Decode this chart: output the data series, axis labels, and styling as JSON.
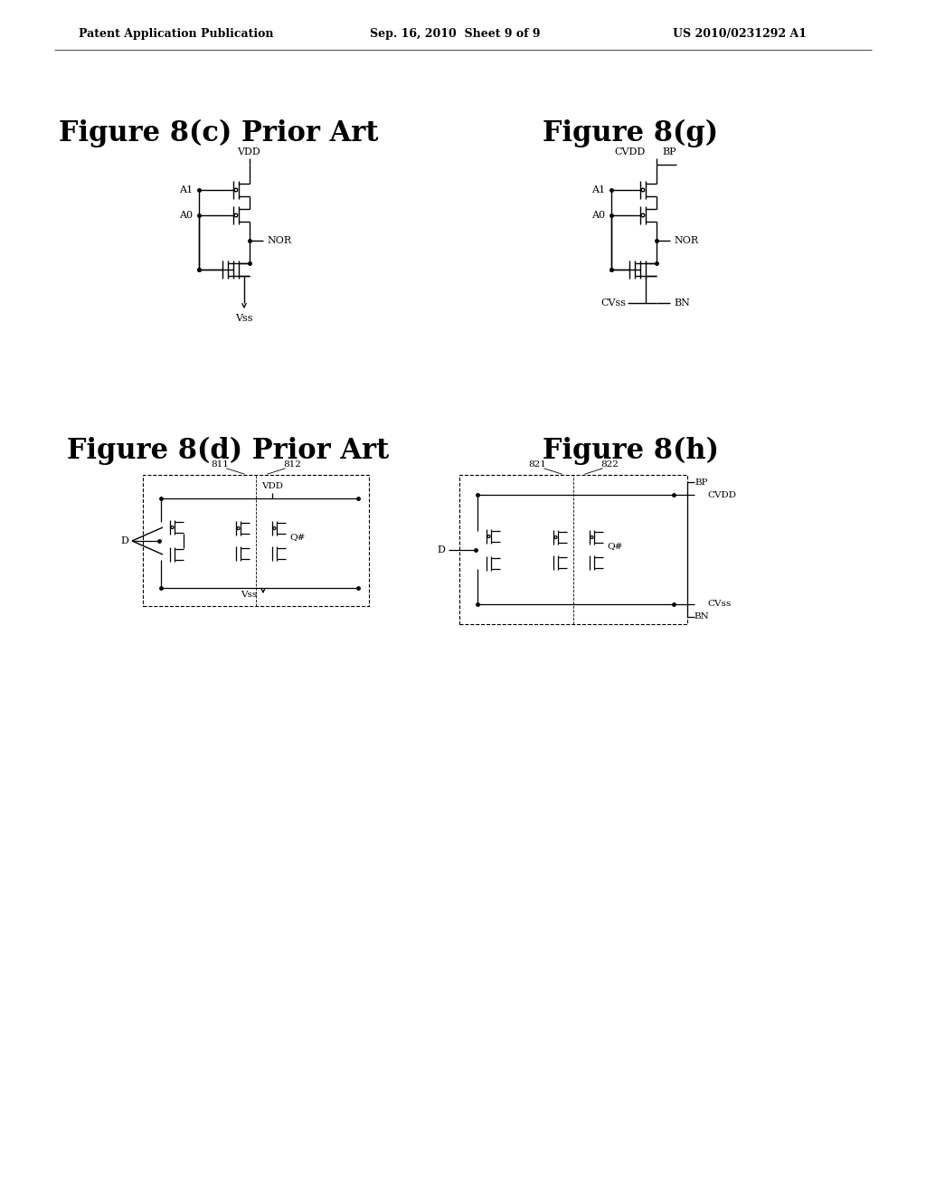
{
  "bg": "#ffffff",
  "header_left": "Patent Application Publication",
  "header_center": "Sep. 16, 2010  Sheet 9 of 9",
  "header_right": "US 2010/0231292 A1",
  "fig8c_title": "Figure 8(c) Prior Art",
  "fig8g_title": "Figure 8(g)",
  "fig8d_title": "Figure 8(d) Prior Art",
  "fig8h_title": "Figure 8(h)"
}
